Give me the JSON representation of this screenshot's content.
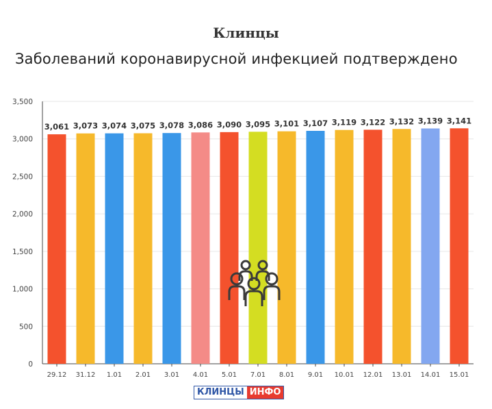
{
  "logo": {
    "part1": "КЛИНЦЫ",
    "part2": "ИНФО"
  },
  "chart_data": {
    "type": "bar",
    "title": "Клинцы",
    "subtitle": "Заболеваний коронавирусной инфекцией подтверждено",
    "categories": [
      "29.12",
      "31.12",
      "1.01",
      "2.01",
      "3.01",
      "4.01",
      "5.01",
      "7.01",
      "8.01",
      "9.01",
      "10.01",
      "12.01",
      "13.01",
      "14.01",
      "15.01"
    ],
    "values": [
      3061,
      3073,
      3074,
      3075,
      3078,
      3086,
      3090,
      3095,
      3101,
      3107,
      3119,
      3122,
      3132,
      3139,
      3141
    ],
    "value_labels": [
      "3,061",
      "3,073",
      "3,074",
      "3,075",
      "3,078",
      "3,086",
      "3,090",
      "3,095",
      "3,101",
      "3,107",
      "3,119",
      "3,122",
      "3,132",
      "3,139",
      "3,141"
    ],
    "colors": [
      "#f4522d",
      "#f6b92b",
      "#3a97e8",
      "#f6b92b",
      "#3a97e8",
      "#f48b87",
      "#f4522d",
      "#d4dd22",
      "#f6b92b",
      "#3a97e8",
      "#f6b92b",
      "#f4522d",
      "#f6b92b",
      "#83a7f0",
      "#f4522d"
    ],
    "ylim": [
      0,
      3500
    ],
    "yticks": [
      0,
      500,
      1000,
      1500,
      2000,
      2500,
      3000,
      3500
    ],
    "ytick_labels": [
      "0",
      "500",
      "1,000",
      "1,500",
      "2,000",
      "2,500",
      "3,000",
      "3,500"
    ],
    "xlabel": "",
    "ylabel": "",
    "grid": true,
    "icon": "people-group-icon"
  }
}
